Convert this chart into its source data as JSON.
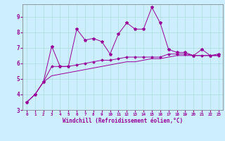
{
  "xlabel": "Windchill (Refroidissement éolien,°C)",
  "x_values": [
    0,
    1,
    2,
    3,
    4,
    5,
    6,
    7,
    8,
    9,
    10,
    11,
    12,
    13,
    14,
    15,
    16,
    17,
    18,
    19,
    20,
    21,
    22,
    23
  ],
  "line1_y": [
    3.5,
    4.0,
    4.8,
    7.1,
    5.8,
    5.8,
    8.2,
    7.5,
    7.6,
    7.4,
    6.6,
    7.9,
    8.6,
    8.2,
    8.2,
    9.6,
    8.6,
    6.9,
    6.7,
    6.7,
    6.5,
    6.9,
    6.5,
    6.6
  ],
  "line2_y": [
    3.5,
    4.0,
    4.8,
    5.8,
    5.8,
    5.8,
    5.9,
    6.0,
    6.1,
    6.2,
    6.2,
    6.3,
    6.4,
    6.4,
    6.4,
    6.4,
    6.4,
    6.6,
    6.6,
    6.6,
    6.5,
    6.5,
    6.5,
    6.5
  ],
  "line3_y": [
    3.5,
    4.0,
    4.8,
    5.2,
    5.3,
    5.4,
    5.5,
    5.6,
    5.7,
    5.8,
    5.9,
    6.0,
    6.1,
    6.1,
    6.2,
    6.3,
    6.3,
    6.4,
    6.5,
    6.5,
    6.5,
    6.5,
    6.5,
    6.5
  ],
  "line_color": "#990099",
  "bg_color": "#cceeff",
  "grid_color": "#aadddd",
  "ylim": [
    3.0,
    9.8
  ],
  "xlim": [
    -0.5,
    23.5
  ],
  "yticks": [
    3,
    4,
    5,
    6,
    7,
    8,
    9
  ],
  "xticks": [
    0,
    1,
    2,
    3,
    4,
    5,
    6,
    7,
    8,
    9,
    10,
    11,
    12,
    13,
    14,
    15,
    16,
    17,
    18,
    19,
    20,
    21,
    22,
    23
  ]
}
